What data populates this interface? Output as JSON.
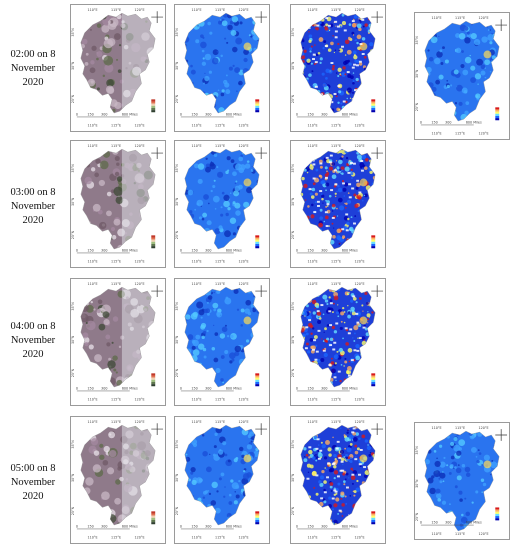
{
  "rows": [
    {
      "label": "02:00 on 8 November 2020"
    },
    {
      "label": "03:00 on 8 November 2020"
    },
    {
      "label": "04:00 on 8 November 2020"
    },
    {
      "label": "05:00 on 8 November 2020"
    }
  ],
  "map_ticks": {
    "lon_top": [
      "110°E",
      "115°E",
      "120°E"
    ],
    "lon_bottom": [
      "110°E",
      "115°E",
      "120°E"
    ],
    "lat": [
      "35°N",
      "30°N",
      "25°N"
    ],
    "scale": [
      "0",
      "150",
      "300",
      "600 Miles"
    ]
  },
  "panel_types": [
    "natural-color",
    "smooth-blue",
    "noisy-mixed",
    "extra-blue"
  ],
  "colors": {
    "ramp": [
      "#d7191c",
      "#fdae61",
      "#ffff66",
      "#66e0ff",
      "#1a66ff",
      "#0000b0"
    ],
    "natural": "#8a6f7d",
    "blue": "#2a6fe8"
  }
}
